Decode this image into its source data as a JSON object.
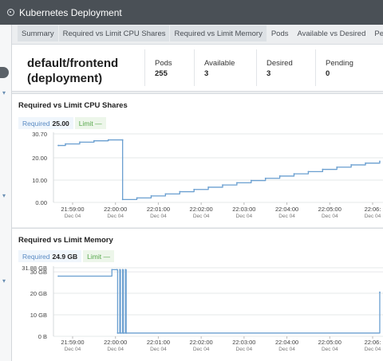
{
  "window": {
    "title": "Kubernetes Deployment"
  },
  "tabs": [
    {
      "label": "Summary",
      "highlighted": true
    },
    {
      "label": "Required vs Limit CPU Shares",
      "highlighted": true
    },
    {
      "label": "Required vs Limit Memory",
      "highlighted": true
    },
    {
      "label": "Pods",
      "highlighted": false
    },
    {
      "label": "Available vs Desired",
      "highlighted": false
    },
    {
      "label": "Pend",
      "highlighted": false
    }
  ],
  "summary": {
    "name_line1": "default/frontend",
    "name_line2": "(deployment)",
    "stats": [
      {
        "label": "Pods",
        "value": "255"
      },
      {
        "label": "Available",
        "value": "3"
      },
      {
        "label": "Desired",
        "value": "3"
      },
      {
        "label": "Pending",
        "value": "0"
      }
    ]
  },
  "cpu_panel": {
    "title": "Required vs Limit CPU Shares",
    "legend": {
      "required_label": "Required",
      "required_value": "25.00",
      "limit_label": "Limit —"
    }
  },
  "mem_panel": {
    "title": "Required vs Limit Memory",
    "legend": {
      "required_label": "Required",
      "required_value": "24.9 GB",
      "limit_label": "Limit —"
    }
  },
  "colors": {
    "series": "#6a9fd0",
    "titlebar": "#4a5056",
    "limit": "#56a84a"
  },
  "chart_data": [
    {
      "type": "line",
      "title": "Required vs Limit CPU Shares",
      "y_tick_labels": [
        "30.70",
        "20.00",
        "10.00",
        "0.00"
      ],
      "y_ticks": [
        30.7,
        20,
        10,
        0
      ],
      "ylim": [
        0,
        30.7
      ],
      "x_tick_labels": [
        "21:59:00",
        "22:00:00",
        "22:01:00",
        "22:02:00",
        "22:03:00",
        "22:04:00",
        "22:05:00",
        "22:06:"
      ],
      "x_tick_sublabel": "Dec 04",
      "x_tick_times": [
        "21:59",
        "22:00",
        "22:01",
        "22:02",
        "22:03",
        "22:04",
        "22:05",
        "22:06"
      ],
      "series": [
        {
          "legend": "Required",
          "x": [
            "21:58:40",
            "21:58:50",
            "21:59:10",
            "21:59:30",
            "21:59:50",
            "22:00:10",
            "22:00:10",
            "22:00:30",
            "22:00:50",
            "22:01:10",
            "22:01:30",
            "22:01:50",
            "22:02:10",
            "22:02:30",
            "22:02:50",
            "22:03:10",
            "22:03:30",
            "22:03:50",
            "22:04:10",
            "22:04:30",
            "22:04:50",
            "22:05:10",
            "22:05:30",
            "22:05:50",
            "22:06:10"
          ],
          "y": [
            25.5,
            26.2,
            27.0,
            27.6,
            28.0,
            28.0,
            1.3,
            2.0,
            2.9,
            3.8,
            4.8,
            5.8,
            6.8,
            7.8,
            8.8,
            9.8,
            10.8,
            11.8,
            12.8,
            13.8,
            14.8,
            15.8,
            16.8,
            17.6,
            18.4
          ]
        }
      ]
    },
    {
      "type": "line",
      "title": "Required vs Limit Memory",
      "y_tick_labels": [
        "31.88 GB",
        "30 GB",
        "20 GB",
        "10 GB",
        "0 B"
      ],
      "y_ticks": [
        31.88,
        30,
        20,
        10,
        0
      ],
      "ylim": [
        0,
        31.88
      ],
      "x_tick_labels": [
        "21:59:00",
        "22:00:00",
        "22:01:00",
        "22:02:00",
        "22:03:00",
        "22:04:00",
        "22:05:00",
        "22:06:"
      ],
      "x_tick_sublabel": "Dec 04",
      "x_tick_times": [
        "21:59",
        "22:00",
        "22:01",
        "22:02",
        "22:03",
        "22:04",
        "22:05",
        "22:06"
      ],
      "series": [
        {
          "legend": "Required",
          "x": [
            "21:58:40",
            "21:59:55",
            "22:00:02",
            "22:00:03",
            "22:00:06",
            "22:00:07",
            "22:00:10",
            "22:00:11",
            "22:00:14",
            "22:00:15",
            "22:06:10"
          ],
          "y": [
            28.0,
            31.0,
            31.0,
            1.5,
            31.0,
            1.5,
            31.0,
            1.5,
            31.0,
            1.5,
            20.5
          ]
        }
      ]
    }
  ]
}
